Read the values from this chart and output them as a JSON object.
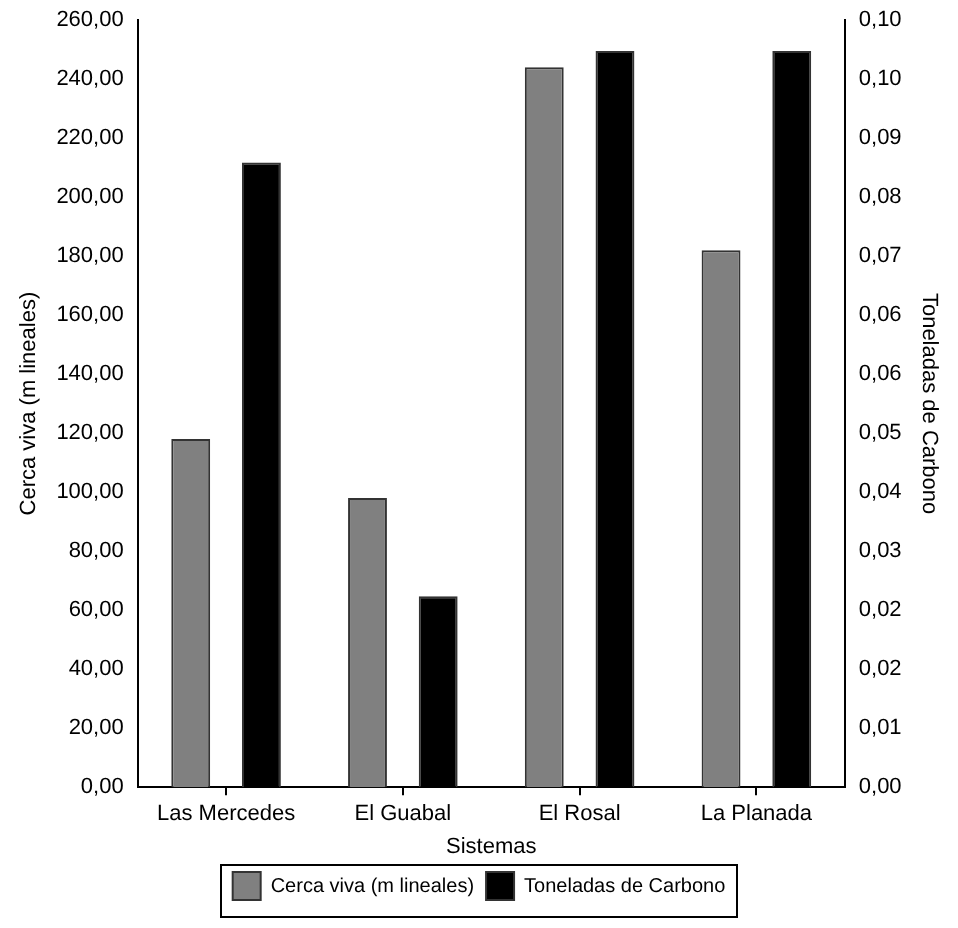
{
  "chart_data": {
    "type": "bar",
    "xlabel": "Sistemas",
    "ylabel": "Cerca viva (m lineales)",
    "y2label": "Toneladas de Carbono",
    "categories": [
      "Las Mercedes",
      "El Guabal",
      "El Rosal",
      "La Planada"
    ],
    "series": [
      {
        "name": "Cerca viva (m lineales)",
        "color": "#808080",
        "values": [
          118,
          98,
          244,
          182
        ]
      },
      {
        "name": "Toneladas de Carbono",
        "color": "#000000",
        "axis": "y2",
        "values": [
          0.0847,
          0.0259,
          0.0998,
          0.0998
        ]
      }
    ],
    "ylim": [
      0,
      260
    ],
    "yticks": [
      {
        "value": 0,
        "label": "0,00"
      },
      {
        "value": 20,
        "label": "20,00"
      },
      {
        "value": 40,
        "label": "40,00"
      },
      {
        "value": 60,
        "label": "60,00"
      },
      {
        "value": 80,
        "label": "80,00"
      },
      {
        "value": 100,
        "label": "100,00"
      },
      {
        "value": 120,
        "label": "120,00"
      },
      {
        "value": 140,
        "label": "140,00"
      },
      {
        "value": 160,
        "label": "160,00"
      },
      {
        "value": 180,
        "label": "180,00"
      },
      {
        "value": 200,
        "label": "200,00"
      },
      {
        "value": 220,
        "label": "220,00"
      },
      {
        "value": 240,
        "label": "240,00"
      },
      {
        "value": 260,
        "label": "260,00"
      }
    ],
    "y2lim": [
      0,
      0.104
    ],
    "y2ticks": [
      {
        "value": 0,
        "label": "0,00"
      },
      {
        "value": 0.008,
        "label": "0,01"
      },
      {
        "value": 0.016,
        "label": "0,02"
      },
      {
        "value": 0.024,
        "label": "0,02"
      },
      {
        "value": 0.032,
        "label": "0,03"
      },
      {
        "value": 0.04,
        "label": "0,04"
      },
      {
        "value": 0.048,
        "label": "0,05"
      },
      {
        "value": 0.056,
        "label": "0,06"
      },
      {
        "value": 0.064,
        "label": "0,06"
      },
      {
        "value": 0.072,
        "label": "0,07"
      },
      {
        "value": 0.08,
        "label": "0,08"
      },
      {
        "value": 0.088,
        "label": "0,09"
      },
      {
        "value": 0.096,
        "label": "0,10"
      },
      {
        "value": 0.104,
        "label": "0,10"
      }
    ],
    "grid": false,
    "legend": "bottom"
  }
}
